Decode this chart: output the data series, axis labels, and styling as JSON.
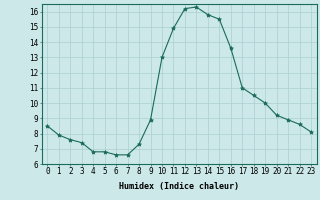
{
  "x": [
    0,
    1,
    2,
    3,
    4,
    5,
    6,
    7,
    8,
    9,
    10,
    11,
    12,
    13,
    14,
    15,
    16,
    17,
    18,
    19,
    20,
    21,
    22,
    23
  ],
  "y": [
    8.5,
    7.9,
    7.6,
    7.4,
    6.8,
    6.8,
    6.6,
    6.6,
    7.3,
    8.9,
    13.0,
    14.9,
    16.2,
    16.3,
    15.8,
    15.5,
    13.6,
    11.0,
    10.5,
    10.0,
    9.2,
    8.9,
    8.6,
    8.1
  ],
  "line_color": "#1a6b5a",
  "marker": "*",
  "marker_size": 3,
  "bg_color": "#cce8e8",
  "grid_color": "#aacfcf",
  "xlabel": "Humidex (Indice chaleur)",
  "ylim": [
    6,
    16.5
  ],
  "xlim": [
    -0.5,
    23.5
  ],
  "yticks": [
    6,
    7,
    8,
    9,
    10,
    11,
    12,
    13,
    14,
    15,
    16
  ],
  "xticks": [
    0,
    1,
    2,
    3,
    4,
    5,
    6,
    7,
    8,
    9,
    10,
    11,
    12,
    13,
    14,
    15,
    16,
    17,
    18,
    19,
    20,
    21,
    22,
    23
  ],
  "axis_fontsize": 6,
  "tick_fontsize": 5.5
}
